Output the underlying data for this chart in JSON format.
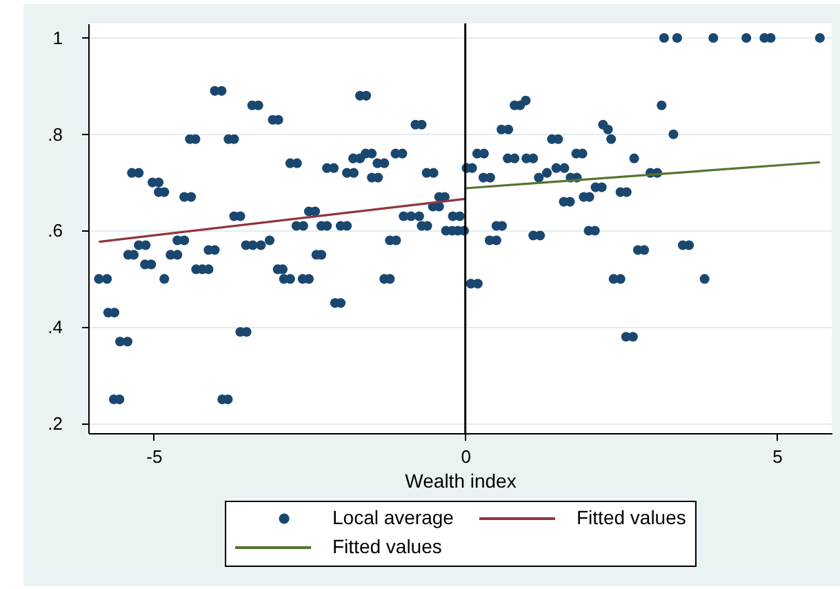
{
  "chart_data": {
    "type": "scatter",
    "xlabel": "Wealth index",
    "xlim": [
      -6.05,
      5.88
    ],
    "ylim": [
      0.18,
      1.03
    ],
    "xticks": [
      -5,
      0,
      5
    ],
    "yticks": [
      {
        "value": 0.2,
        "label": ".2"
      },
      {
        "value": 0.4,
        "label": ".4"
      },
      {
        "value": 0.6,
        "label": ".6"
      },
      {
        "value": 0.8,
        "label": ".8"
      },
      1
    ],
    "grid": "y",
    "legend": "bottom",
    "ref_lines": [
      {
        "axis": "x",
        "value": 0,
        "color": "#000000"
      }
    ],
    "series": [
      {
        "name": "Local average",
        "marker": "circle",
        "color": "#1a476f",
        "x": [
          -5.88,
          -5.75,
          -5.73,
          -5.63,
          -5.64,
          -5.55,
          -5.54,
          -5.42,
          -5.41,
          -5.32,
          -5.35,
          -5.24,
          -5.24,
          -5.13,
          -5.14,
          -5.04,
          -5.02,
          -4.92,
          -4.92,
          -4.83,
          -4.83,
          -4.73,
          -4.62,
          -4.62,
          -4.51,
          -4.51,
          -4.4,
          -4.42,
          -4.33,
          -4.32,
          -4.22,
          -4.12,
          -4.12,
          -4.02,
          -4.02,
          -3.91,
          -3.9,
          -3.81,
          -3.8,
          -3.71,
          -3.71,
          -3.61,
          -3.61,
          -3.51,
          -3.52,
          -3.41,
          -3.28,
          -3.14,
          -3.42,
          -3.32,
          -3.09,
          -3.0,
          -3.01,
          -2.93,
          -2.91,
          -2.81,
          -2.81,
          -2.7,
          -2.71,
          -2.6,
          -2.61,
          -2.51,
          -2.51,
          -2.41,
          -2.39,
          -2.31,
          -2.31,
          -2.22,
          -2.22,
          -2.11,
          -2.09,
          -2.0,
          -2.0,
          -1.9,
          -1.9,
          -1.79,
          -1.8,
          -1.69,
          -1.69,
          -1.59,
          -1.6,
          -1.5,
          -1.5,
          -1.4,
          -1.41,
          -1.3,
          -1.3,
          -1.21,
          -1.21,
          -1.11,
          -1.12,
          -1.01,
          -0.99,
          -0.87,
          -0.74,
          -0.8,
          -0.7,
          -0.7,
          -0.61,
          -0.62,
          -0.51,
          -0.52,
          -0.42,
          -0.42,
          -0.33,
          -0.31,
          -0.21,
          -0.2,
          -0.09,
          -0.12,
          -0.02,
          0.02,
          0.11,
          0.09,
          0.2,
          0.19,
          0.3,
          0.29,
          0.4,
          0.39,
          0.5,
          0.5,
          0.59,
          0.58,
          0.69,
          0.68,
          0.79,
          0.79,
          0.88,
          0.97,
          0.98,
          1.09,
          1.09,
          1.2,
          1.18,
          1.31,
          1.46,
          1.59,
          1.69,
          1.79,
          1.39,
          1.49,
          1.58,
          1.68,
          1.78,
          1.88,
          1.9,
          1.99,
          1.98,
          2.08,
          2.09,
          2.19,
          2.21,
          2.29,
          2.34,
          2.38,
          2.49,
          2.49,
          2.59,
          2.58,
          2.69,
          2.71,
          2.77,
          2.87,
          2.97,
          3.08,
          3.15,
          3.19,
          3.4,
          3.34,
          3.49,
          3.59,
          3.84,
          3.98,
          4.51,
          4.8,
          4.9,
          5.69
        ],
        "values": [
          0.5,
          0.5,
          0.43,
          0.43,
          0.25,
          0.25,
          0.37,
          0.37,
          0.55,
          0.55,
          0.72,
          0.72,
          0.57,
          0.57,
          0.53,
          0.53,
          0.7,
          0.7,
          0.68,
          0.68,
          0.5,
          0.55,
          0.55,
          0.58,
          0.58,
          0.67,
          0.67,
          0.79,
          0.79,
          0.52,
          0.52,
          0.52,
          0.56,
          0.56,
          0.89,
          0.89,
          0.25,
          0.25,
          0.79,
          0.79,
          0.63,
          0.63,
          0.39,
          0.39,
          0.57,
          0.57,
          0.57,
          0.58,
          0.86,
          0.86,
          0.83,
          0.83,
          0.52,
          0.52,
          0.5,
          0.5,
          0.74,
          0.74,
          0.61,
          0.61,
          0.5,
          0.5,
          0.64,
          0.64,
          0.55,
          0.55,
          0.61,
          0.61,
          0.73,
          0.73,
          0.45,
          0.45,
          0.61,
          0.61,
          0.72,
          0.72,
          0.75,
          0.75,
          0.88,
          0.88,
          0.76,
          0.76,
          0.71,
          0.71,
          0.74,
          0.74,
          0.5,
          0.5,
          0.58,
          0.58,
          0.76,
          0.76,
          0.63,
          0.63,
          0.63,
          0.82,
          0.82,
          0.61,
          0.61,
          0.72,
          0.72,
          0.65,
          0.65,
          0.67,
          0.67,
          0.6,
          0.6,
          0.63,
          0.63,
          0.6,
          0.6,
          0.73,
          0.73,
          0.49,
          0.49,
          0.76,
          0.76,
          0.71,
          0.71,
          0.58,
          0.58,
          0.61,
          0.61,
          0.81,
          0.81,
          0.75,
          0.75,
          0.86,
          0.86,
          0.87,
          0.75,
          0.75,
          0.59,
          0.59,
          0.71,
          0.72,
          0.73,
          0.73,
          0.71,
          0.71,
          0.79,
          0.79,
          0.66,
          0.66,
          0.76,
          0.76,
          0.67,
          0.67,
          0.6,
          0.6,
          0.69,
          0.69,
          0.82,
          0.81,
          0.79,
          0.5,
          0.5,
          0.68,
          0.68,
          0.38,
          0.38,
          0.75,
          0.56,
          0.56,
          0.72,
          0.72,
          0.86,
          1,
          1,
          0.8,
          0.57,
          0.57,
          0.5,
          1,
          1,
          1,
          1,
          1
        ]
      },
      {
        "name": "Fitted values",
        "type": "line",
        "color": "#90353b",
        "x": [
          -5.88,
          0
        ],
        "values": [
          0.577,
          0.666
        ]
      },
      {
        "name": "Fitted values",
        "type": "line",
        "color": "#55752f",
        "x": [
          0,
          5.69
        ],
        "values": [
          0.688,
          0.742
        ]
      }
    ]
  }
}
